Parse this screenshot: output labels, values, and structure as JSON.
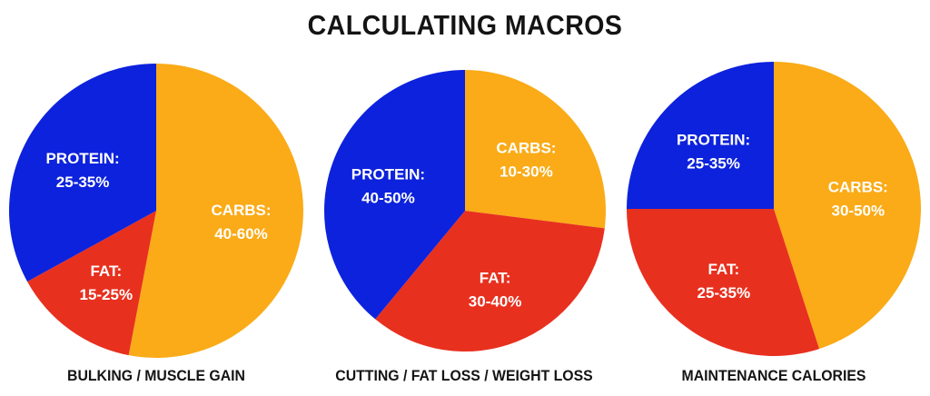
{
  "title": "CALCULATING MACROS",
  "colors": {
    "carbs": "#FAAB17",
    "fat": "#E8301F",
    "protein": "#0D22DC"
  },
  "chart_data": [
    {
      "type": "pie",
      "caption": "BULKING / MUSCLE GAIN",
      "slices": [
        {
          "key": "carbs",
          "label": "CARBS:",
          "range": "40-60%",
          "value": 53
        },
        {
          "key": "fat",
          "label": "FAT:",
          "range": "15-25%",
          "value": 14
        },
        {
          "key": "protein",
          "label": "PROTEIN:",
          "range": "25-35%",
          "value": 33
        }
      ]
    },
    {
      "type": "pie",
      "caption": "CUTTING / FAT LOSS / WEIGHT LOSS",
      "slices": [
        {
          "key": "carbs",
          "label": "CARBS:",
          "range": "10-30%",
          "value": 27
        },
        {
          "key": "fat",
          "label": "FAT:",
          "range": "30-40%",
          "value": 34
        },
        {
          "key": "protein",
          "label": "PROTEIN:",
          "range": "40-50%",
          "value": 39
        }
      ]
    },
    {
      "type": "pie",
      "caption": "MAINTENANCE CALORIES",
      "slices": [
        {
          "key": "carbs",
          "label": "CARBS:",
          "range": "30-50%",
          "value": 45
        },
        {
          "key": "fat",
          "label": "FAT:",
          "range": "25-35%",
          "value": 30
        },
        {
          "key": "protein",
          "label": "PROTEIN:",
          "range": "25-35%",
          "value": 25
        }
      ]
    }
  ]
}
